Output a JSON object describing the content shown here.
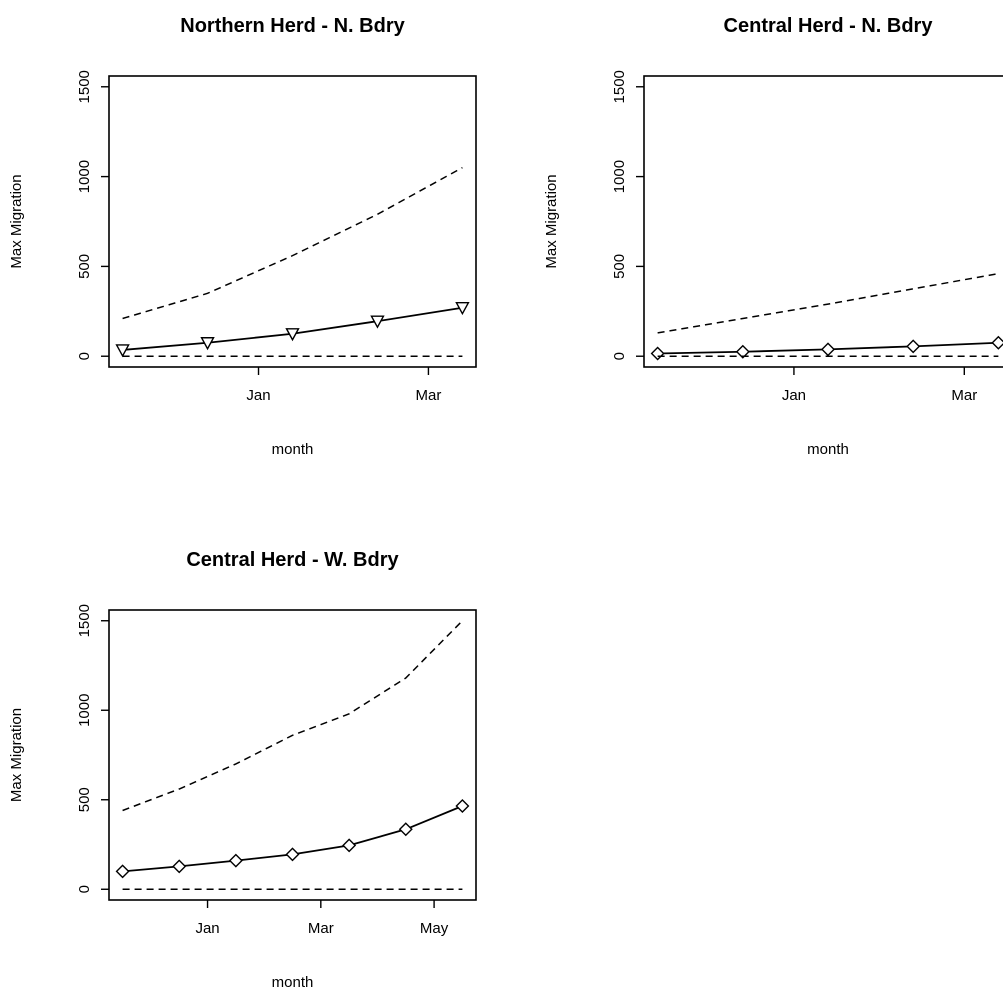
{
  "chart_data": [
    {
      "type": "line",
      "title": "Northern Herd - N. Bdry",
      "xlabel": "month",
      "ylabel": "Max Migration",
      "ylim": [
        0,
        1500
      ],
      "yticks": [
        "0",
        "500",
        "1000",
        "1500"
      ],
      "x_tick_labels": [
        "Jan",
        "Mar"
      ],
      "marker": "triangle-down",
      "grid": false,
      "x": [
        0,
        1,
        2,
        3,
        4
      ],
      "x_tick_positions": [
        1.6,
        3.6
      ],
      "series": [
        {
          "values": [
            35,
            75,
            125,
            195,
            270
          ],
          "style": "solid-with-markers"
        },
        {
          "values": [
            210,
            350,
            560,
            790,
            1050
          ],
          "style": "dashed"
        },
        {
          "values": [
            0,
            0,
            0,
            0,
            0
          ],
          "style": "dashed"
        }
      ]
    },
    {
      "type": "line",
      "title": "Central Herd - N. Bdry",
      "xlabel": "month",
      "ylabel": "Max Migration",
      "ylim": [
        0,
        1500
      ],
      "yticks": [
        "0",
        "500",
        "1000",
        "1500"
      ],
      "x_tick_labels": [
        "Jan",
        "Mar"
      ],
      "marker": "diamond",
      "grid": false,
      "x": [
        0,
        1,
        2,
        3,
        4
      ],
      "x_tick_positions": [
        1.6,
        3.6
      ],
      "series": [
        {
          "values": [
            15,
            25,
            38,
            55,
            75
          ],
          "style": "solid-with-markers"
        },
        {
          "values": [
            130,
            210,
            290,
            375,
            460
          ],
          "style": "dashed"
        },
        {
          "values": [
            0,
            0,
            0,
            0,
            0
          ],
          "style": "dashed"
        }
      ]
    },
    {
      "type": "line",
      "title": "Central Herd - W. Bdry",
      "xlabel": "month",
      "ylabel": "Max Migration",
      "ylim": [
        0,
        1500
      ],
      "yticks": [
        "0",
        "500",
        "1000",
        "1500"
      ],
      "x_tick_labels": [
        "Jan",
        "Mar",
        "May"
      ],
      "marker": "diamond",
      "grid": false,
      "x": [
        0,
        1,
        2,
        3,
        4,
        5,
        6
      ],
      "x_tick_positions": [
        1.5,
        3.5,
        5.5
      ],
      "series": [
        {
          "values": [
            100,
            128,
            160,
            195,
            245,
            335,
            465
          ],
          "style": "solid-with-markers"
        },
        {
          "values": [
            440,
            560,
            700,
            860,
            980,
            1180,
            1500
          ],
          "style": "dashed"
        },
        {
          "values": [
            0,
            0,
            0,
            0,
            0,
            0,
            0
          ],
          "style": "dashed"
        }
      ]
    }
  ]
}
